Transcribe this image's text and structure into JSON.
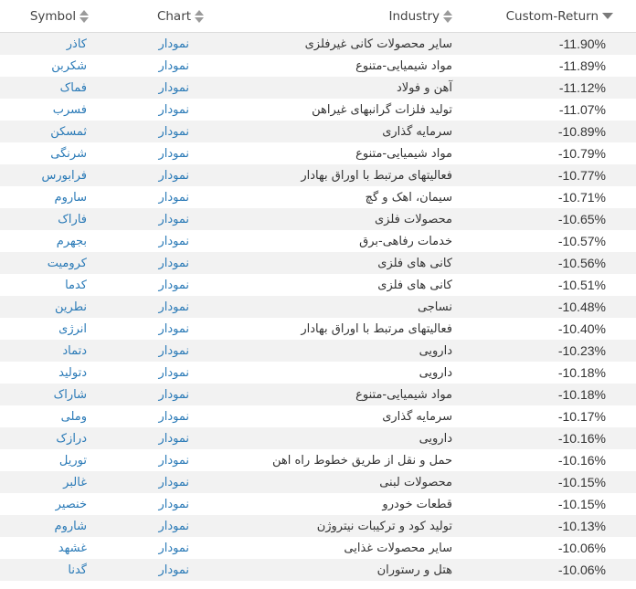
{
  "header": {
    "symbol": "Symbol",
    "chart": "Chart",
    "industry": "Industry",
    "custom_return": "Custom-Return"
  },
  "colors": {
    "link": "#2a7ab7",
    "row_alt": "#f2f2f2"
  },
  "rows": [
    {
      "symbol": "کاذر",
      "chart": "نمودار",
      "industry": "سایر محصولات کانی غیرفلزی",
      "ret": "-11.90%"
    },
    {
      "symbol": "شکربن",
      "chart": "نمودار",
      "industry": "مواد شیمیایی-متنوع",
      "ret": "-11.89%"
    },
    {
      "symbol": "فماک",
      "chart": "نمودار",
      "industry": "آهن و فولاد",
      "ret": "-11.12%"
    },
    {
      "symbol": "فسرب",
      "chart": "نمودار",
      "industry": "تولید فلزات گرانبهای غیراهن",
      "ret": "-11.07%"
    },
    {
      "symbol": "ثمسکن",
      "chart": "نمودار",
      "industry": "سرمایه گذاری",
      "ret": "-10.89%"
    },
    {
      "symbol": "شرنگی",
      "chart": "نمودار",
      "industry": "مواد شیمیایی-متنوع",
      "ret": "-10.79%"
    },
    {
      "symbol": "فرابورس",
      "chart": "نمودار",
      "industry": "فعالیتهای مرتبط با اوراق بهادار",
      "ret": "-10.77%"
    },
    {
      "symbol": "ساروم",
      "chart": "نمودار",
      "industry": "سیمان، اهک و گچ",
      "ret": "-10.71%"
    },
    {
      "symbol": "فاراک",
      "chart": "نمودار",
      "industry": "محصولات فلزی",
      "ret": "-10.65%"
    },
    {
      "symbol": "بجهرم",
      "chart": "نمودار",
      "industry": "خدمات رفاهی-برق",
      "ret": "-10.57%"
    },
    {
      "symbol": "کرومیت",
      "chart": "نمودار",
      "industry": "کانی های فلزی",
      "ret": "-10.56%"
    },
    {
      "symbol": "کدما",
      "chart": "نمودار",
      "industry": "کانی های فلزی",
      "ret": "-10.51%"
    },
    {
      "symbol": "نطرین",
      "chart": "نمودار",
      "industry": "نساجی",
      "ret": "-10.48%"
    },
    {
      "symbol": "انرژی",
      "chart": "نمودار",
      "industry": "فعالیتهای مرتبط با اوراق بهادار",
      "ret": "-10.40%"
    },
    {
      "symbol": "دتماد",
      "chart": "نمودار",
      "industry": "دارویی",
      "ret": "-10.23%"
    },
    {
      "symbol": "دتولید",
      "chart": "نمودار",
      "industry": "دارویی",
      "ret": "-10.18%"
    },
    {
      "symbol": "شاراک",
      "chart": "نمودار",
      "industry": "مواد شیمیایی-متنوع",
      "ret": "-10.18%"
    },
    {
      "symbol": "وملی",
      "chart": "نمودار",
      "industry": "سرمایه گذاری",
      "ret": "-10.17%"
    },
    {
      "symbol": "درازک",
      "chart": "نمودار",
      "industry": "دارویی",
      "ret": "-10.16%"
    },
    {
      "symbol": "توریل",
      "chart": "نمودار",
      "industry": "حمل و نقل از طریق خطوط راه اهن",
      "ret": "-10.16%"
    },
    {
      "symbol": "غالبر",
      "chart": "نمودار",
      "industry": "محصولات لبنی",
      "ret": "-10.15%"
    },
    {
      "symbol": "خنصیر",
      "chart": "نمودار",
      "industry": "قطعات خودرو",
      "ret": "-10.15%"
    },
    {
      "symbol": "شاروم",
      "chart": "نمودار",
      "industry": "تولید کود و ترکیبات نیتروژن",
      "ret": "-10.13%"
    },
    {
      "symbol": "غشهد",
      "chart": "نمودار",
      "industry": "سایر محصولات غذایی",
      "ret": "-10.06%"
    },
    {
      "symbol": "گدنا",
      "chart": "نمودار",
      "industry": "هتل و رستوران",
      "ret": "-10.06%"
    }
  ]
}
